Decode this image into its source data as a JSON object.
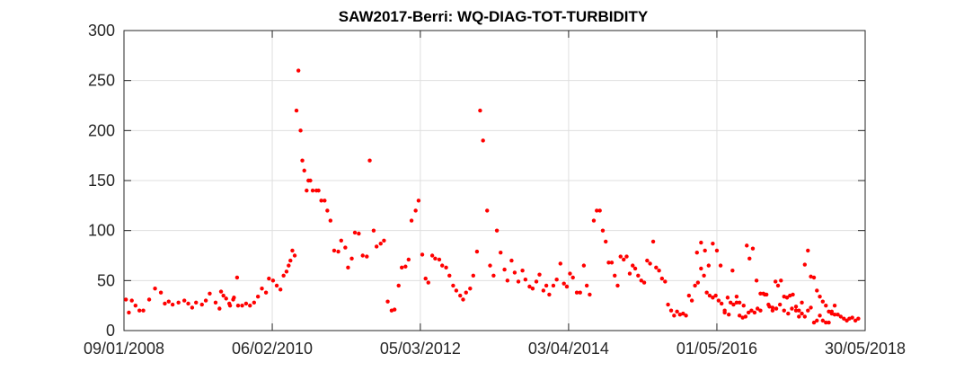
{
  "chart_data": {
    "type": "scatter",
    "title": "SAW2017-Berri: WQ-DIAG-TOT-TURBIDITY",
    "xlabel": "",
    "ylabel": "",
    "x_axis": "date",
    "xlim": [
      "2008-01-09",
      "2018-05-30"
    ],
    "ylim": [
      0,
      300
    ],
    "y_ticks": [
      0,
      50,
      100,
      150,
      200,
      250,
      300
    ],
    "x_ticks": [
      {
        "date": "2008-01-09",
        "label": "09/01/2008"
      },
      {
        "date": "2010-02-06",
        "label": "06/02/2010"
      },
      {
        "date": "2012-03-05",
        "label": "05/03/2012"
      },
      {
        "date": "2014-04-03",
        "label": "03/04/2014"
      },
      {
        "date": "2016-05-01",
        "label": "01/05/2016"
      },
      {
        "date": "2018-05-30",
        "label": "30/05/2018"
      }
    ],
    "grid": true,
    "marker_color": "#ff0000",
    "series": [
      {
        "points": [
          [
            "2008-01-19",
            31
          ],
          [
            "2008-02-03",
            18
          ],
          [
            "2008-02-18",
            30
          ],
          [
            "2008-03-08",
            25
          ],
          [
            "2008-03-28",
            20
          ],
          [
            "2008-04-17",
            20
          ],
          [
            "2008-05-17",
            31
          ],
          [
            "2008-06-16",
            42
          ],
          [
            "2008-07-16",
            38
          ],
          [
            "2008-08-05",
            27
          ],
          [
            "2008-08-25",
            29
          ],
          [
            "2008-09-14",
            26
          ],
          [
            "2008-10-14",
            28
          ],
          [
            "2008-11-13",
            30
          ],
          [
            "2008-12-03",
            27
          ],
          [
            "2008-12-23",
            23
          ],
          [
            "2009-01-12",
            28
          ],
          [
            "2009-02-11",
            26
          ],
          [
            "2009-03-03",
            30
          ],
          [
            "2009-03-23",
            37
          ],
          [
            "2009-04-22",
            28
          ],
          [
            "2009-05-12",
            22
          ],
          [
            "2009-06-01",
            35
          ],
          [
            "2009-07-01",
            27
          ],
          [
            "2009-07-21",
            31
          ],
          [
            "2009-08-10",
            53
          ],
          [
            "2009-05-20",
            39
          ],
          [
            "2009-06-15",
            32
          ],
          [
            "2009-07-05",
            25
          ],
          [
            "2009-07-25",
            33
          ],
          [
            "2009-08-15",
            25
          ],
          [
            "2009-09-05",
            25
          ],
          [
            "2009-09-25",
            27
          ],
          [
            "2009-10-15",
            25
          ],
          [
            "2009-11-05",
            28
          ],
          [
            "2009-11-25",
            34
          ],
          [
            "2009-12-15",
            42
          ],
          [
            "2010-01-05",
            38
          ],
          [
            "2010-01-20",
            52
          ],
          [
            "2010-02-10",
            50
          ],
          [
            "2010-03-01",
            45
          ],
          [
            "2010-03-20",
            41
          ],
          [
            "2010-04-05",
            55
          ],
          [
            "2010-04-20",
            59
          ],
          [
            "2010-05-01",
            65
          ],
          [
            "2010-05-10",
            70
          ],
          [
            "2010-05-20",
            80
          ],
          [
            "2010-06-01",
            75
          ],
          [
            "2010-06-10",
            220
          ],
          [
            "2010-06-20",
            260
          ],
          [
            "2010-07-01",
            200
          ],
          [
            "2010-07-10",
            170
          ],
          [
            "2010-07-20",
            160
          ],
          [
            "2010-08-01",
            140
          ],
          [
            "2010-08-10",
            150
          ],
          [
            "2010-08-20",
            150
          ],
          [
            "2010-09-01",
            140
          ],
          [
            "2010-09-20",
            140
          ],
          [
            "2010-10-01",
            140
          ],
          [
            "2010-10-15",
            130
          ],
          [
            "2010-11-01",
            130
          ],
          [
            "2010-11-15",
            120
          ],
          [
            "2010-12-01",
            110
          ],
          [
            "2010-12-20",
            80
          ],
          [
            "2011-01-10",
            79
          ],
          [
            "2011-01-25",
            90
          ],
          [
            "2011-02-15",
            83
          ],
          [
            "2011-03-01",
            63
          ],
          [
            "2011-03-20",
            72
          ],
          [
            "2011-04-05",
            98
          ],
          [
            "2011-04-25",
            97
          ],
          [
            "2011-05-15",
            75
          ],
          [
            "2011-06-05",
            74
          ],
          [
            "2011-06-20",
            170
          ],
          [
            "2011-07-10",
            100
          ],
          [
            "2011-07-25",
            84
          ],
          [
            "2011-08-15",
            87
          ],
          [
            "2011-09-01",
            90
          ],
          [
            "2011-09-20",
            29
          ],
          [
            "2011-10-10",
            20
          ],
          [
            "2011-10-25",
            21
          ],
          [
            "2011-11-15",
            45
          ],
          [
            "2011-12-01",
            63
          ],
          [
            "2011-12-20",
            64
          ],
          [
            "2012-01-05",
            71
          ],
          [
            "2012-01-20",
            110
          ],
          [
            "2012-02-10",
            120
          ],
          [
            "2012-02-25",
            130
          ],
          [
            "2012-03-15",
            76
          ],
          [
            "2012-04-01",
            52
          ],
          [
            "2012-04-15",
            48
          ],
          [
            "2012-05-05",
            75
          ],
          [
            "2012-05-20",
            72
          ],
          [
            "2012-06-10",
            71
          ],
          [
            "2012-06-25",
            65
          ],
          [
            "2012-07-15",
            63
          ],
          [
            "2012-08-01",
            55
          ],
          [
            "2012-08-20",
            45
          ],
          [
            "2012-09-05",
            40
          ],
          [
            "2012-09-25",
            35
          ],
          [
            "2012-10-10",
            31
          ],
          [
            "2012-10-25",
            38
          ],
          [
            "2012-11-15",
            42
          ],
          [
            "2012-12-01",
            55
          ],
          [
            "2012-12-20",
            79
          ],
          [
            "2013-01-05",
            220
          ],
          [
            "2013-01-20",
            190
          ],
          [
            "2013-02-10",
            120
          ],
          [
            "2013-02-25",
            65
          ],
          [
            "2013-03-15",
            55
          ],
          [
            "2013-04-01",
            100
          ],
          [
            "2013-04-20",
            78
          ],
          [
            "2013-05-10",
            61
          ],
          [
            "2013-05-25",
            50
          ],
          [
            "2013-06-15",
            70
          ],
          [
            "2013-07-01",
            58
          ],
          [
            "2013-07-20",
            49
          ],
          [
            "2013-08-10",
            60
          ],
          [
            "2013-08-25",
            51
          ],
          [
            "2013-09-15",
            44
          ],
          [
            "2013-10-01",
            42
          ],
          [
            "2013-10-20",
            49
          ],
          [
            "2013-11-05",
            56
          ],
          [
            "2013-11-25",
            40
          ],
          [
            "2013-12-10",
            45
          ],
          [
            "2013-12-25",
            36
          ],
          [
            "2014-01-15",
            45
          ],
          [
            "2014-02-01",
            51
          ],
          [
            "2014-02-20",
            67
          ],
          [
            "2014-03-10",
            47
          ],
          [
            "2014-03-25",
            44
          ],
          [
            "2014-04-10",
            57
          ],
          [
            "2014-04-25",
            53
          ],
          [
            "2014-05-15",
            38
          ],
          [
            "2014-06-01",
            38
          ],
          [
            "2014-06-20",
            65
          ],
          [
            "2014-07-05",
            45
          ],
          [
            "2014-07-20",
            36
          ],
          [
            "2014-08-10",
            110
          ],
          [
            "2014-08-25",
            120
          ],
          [
            "2014-09-10",
            120
          ],
          [
            "2014-09-25",
            100
          ],
          [
            "2014-10-10",
            89
          ],
          [
            "2014-10-25",
            68
          ],
          [
            "2014-11-10",
            68
          ],
          [
            "2014-11-25",
            55
          ],
          [
            "2014-12-10",
            45
          ],
          [
            "2014-12-25",
            74
          ],
          [
            "2015-01-10",
            71
          ],
          [
            "2015-01-25",
            74
          ],
          [
            "2015-02-10",
            57
          ],
          [
            "2015-02-25",
            65
          ],
          [
            "2015-03-10",
            62
          ],
          [
            "2015-03-25",
            55
          ],
          [
            "2015-04-10",
            50
          ],
          [
            "2015-04-25",
            48
          ],
          [
            "2015-05-10",
            70
          ],
          [
            "2015-05-25",
            67
          ],
          [
            "2015-06-10",
            89
          ],
          [
            "2015-06-25",
            63
          ],
          [
            "2015-07-10",
            60
          ],
          [
            "2015-07-25",
            52
          ],
          [
            "2015-08-10",
            49
          ],
          [
            "2015-08-25",
            26
          ],
          [
            "2015-09-10",
            20
          ],
          [
            "2015-09-25",
            15
          ],
          [
            "2015-10-10",
            19
          ],
          [
            "2015-10-25",
            16
          ],
          [
            "2015-11-10",
            17
          ],
          [
            "2015-11-25",
            15
          ],
          [
            "2015-12-10",
            35
          ],
          [
            "2015-12-25",
            30
          ],
          [
            "2016-01-10",
            45
          ],
          [
            "2016-01-25",
            48
          ],
          [
            "2016-02-10",
            62
          ],
          [
            "2016-02-25",
            55
          ],
          [
            "2016-03-10",
            38
          ],
          [
            "2016-03-25",
            35
          ],
          [
            "2016-04-10",
            33
          ],
          [
            "2016-04-25",
            35
          ],
          [
            "2016-05-10",
            30
          ],
          [
            "2016-05-25",
            27
          ],
          [
            "2016-06-10",
            18
          ],
          [
            "2016-06-25",
            33
          ],
          [
            "2016-07-10",
            28
          ],
          [
            "2016-07-25",
            26
          ],
          [
            "2016-08-10",
            28
          ],
          [
            "2016-08-25",
            15
          ],
          [
            "2016-09-10",
            13
          ],
          [
            "2016-09-25",
            14
          ],
          [
            "2016-10-10",
            18
          ],
          [
            "2016-10-25",
            20
          ],
          [
            "2016-11-10",
            18
          ],
          [
            "2016-11-25",
            22
          ],
          [
            "2016-12-10",
            20
          ],
          [
            "2016-12-25",
            37
          ],
          [
            "2017-01-10",
            36
          ],
          [
            "2017-01-25",
            24
          ],
          [
            "2017-02-10",
            20
          ],
          [
            "2017-02-25",
            49
          ],
          [
            "2017-03-10",
            45
          ],
          [
            "2017-03-25",
            50
          ],
          [
            "2017-04-10",
            34
          ],
          [
            "2017-04-25",
            33
          ],
          [
            "2017-05-10",
            35
          ],
          [
            "2017-05-25",
            36
          ],
          [
            "2017-06-10",
            24
          ],
          [
            "2017-06-25",
            20
          ],
          [
            "2017-07-10",
            17
          ],
          [
            "2017-07-25",
            14
          ],
          [
            "2017-08-10",
            20
          ],
          [
            "2017-08-25",
            23
          ],
          [
            "2017-09-10",
            8
          ],
          [
            "2017-09-25",
            10
          ],
          [
            "2017-10-10",
            15
          ],
          [
            "2017-10-25",
            10
          ],
          [
            "2017-11-10",
            8
          ],
          [
            "2017-11-25",
            8
          ],
          [
            "2017-12-10",
            19
          ],
          [
            "2017-12-25",
            25
          ],
          [
            "2016-01-20",
            78
          ],
          [
            "2016-02-10",
            88
          ],
          [
            "2016-03-01",
            80
          ],
          [
            "2016-03-20",
            65
          ],
          [
            "2016-04-10",
            87
          ],
          [
            "2016-05-01",
            80
          ],
          [
            "2016-05-20",
            65
          ],
          [
            "2016-06-10",
            20
          ],
          [
            "2016-07-01",
            16
          ],
          [
            "2016-07-20",
            60
          ],
          [
            "2016-08-10",
            34
          ],
          [
            "2016-08-25",
            28
          ],
          [
            "2016-09-15",
            25
          ],
          [
            "2016-10-01",
            85
          ],
          [
            "2016-10-15",
            72
          ],
          [
            "2016-11-01",
            82
          ],
          [
            "2016-11-20",
            50
          ],
          [
            "2016-12-10",
            37
          ],
          [
            "2017-01-01",
            36
          ],
          [
            "2017-01-20",
            26
          ],
          [
            "2017-02-10",
            23
          ],
          [
            "2017-03-01",
            22
          ],
          [
            "2017-03-20",
            26
          ],
          [
            "2017-04-10",
            20
          ],
          [
            "2017-05-01",
            17
          ],
          [
            "2017-05-20",
            22
          ],
          [
            "2017-06-10",
            20
          ],
          [
            "2017-06-25",
            14
          ],
          [
            "2017-07-10",
            28
          ],
          [
            "2017-07-25",
            66
          ],
          [
            "2017-08-10",
            80
          ],
          [
            "2017-08-25",
            54
          ],
          [
            "2017-09-10",
            53
          ],
          [
            "2017-09-25",
            40
          ],
          [
            "2017-10-10",
            34
          ],
          [
            "2017-10-25",
            29
          ],
          [
            "2017-11-10",
            25
          ],
          [
            "2017-11-25",
            19
          ],
          [
            "2017-12-10",
            17
          ],
          [
            "2017-12-25",
            16
          ],
          [
            "2018-01-10",
            16
          ],
          [
            "2018-01-25",
            14
          ],
          [
            "2018-02-10",
            12
          ],
          [
            "2018-02-25",
            10
          ],
          [
            "2018-03-10",
            12
          ],
          [
            "2018-03-25",
            13
          ],
          [
            "2018-04-10",
            10
          ],
          [
            "2018-04-25",
            12
          ]
        ]
      }
    ]
  }
}
